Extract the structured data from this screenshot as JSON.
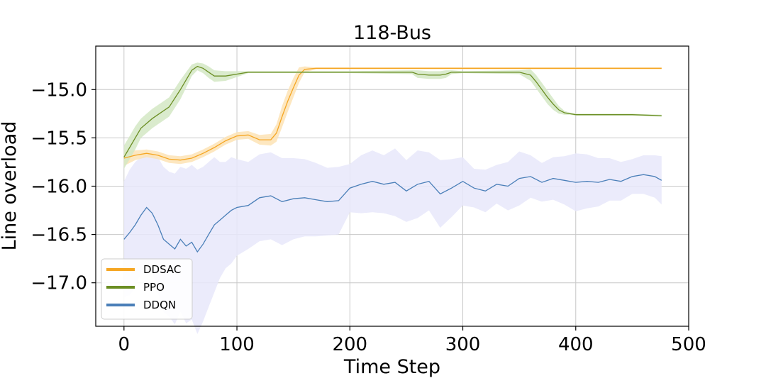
{
  "chart_data": {
    "type": "line",
    "title": "118-Bus",
    "xlabel": "Time Step",
    "ylabel": "Line overload",
    "xlim": [
      -25,
      500
    ],
    "ylim": [
      -17.45,
      -14.55
    ],
    "xticks": [
      0,
      100,
      200,
      300,
      400,
      500
    ],
    "xtick_labels": [
      "0",
      "100",
      "200",
      "300",
      "400",
      "500"
    ],
    "yticks": [
      -15.0,
      -15.5,
      -16.0,
      -16.5,
      -17.0
    ],
    "ytick_labels": [
      "−15.0",
      "−15.5",
      "−16.0",
      "−16.5",
      "−17.0"
    ],
    "grid": true,
    "legend_position": "lower-left",
    "series": [
      {
        "name": "DDSAC",
        "color": "#f5a623",
        "band_color": "#fde3b5",
        "x": [
          0,
          10,
          20,
          30,
          40,
          50,
          60,
          70,
          80,
          90,
          100,
          110,
          120,
          130,
          135,
          140,
          145,
          150,
          155,
          160,
          170,
          200,
          250,
          300,
          350,
          400,
          476
        ],
        "y": [
          -15.71,
          -15.68,
          -15.66,
          -15.68,
          -15.72,
          -15.73,
          -15.71,
          -15.66,
          -15.6,
          -15.53,
          -15.48,
          -15.47,
          -15.52,
          -15.52,
          -15.45,
          -15.28,
          -15.12,
          -14.98,
          -14.85,
          -14.79,
          -14.78,
          -14.78,
          -14.78,
          -14.78,
          -14.78,
          -14.78,
          -14.78
        ],
        "band": [
          0.08,
          0.05,
          0.04,
          0.04,
          0.04,
          0.04,
          0.04,
          0.04,
          0.04,
          0.04,
          0.04,
          0.04,
          0.05,
          0.06,
          0.09,
          0.11,
          0.11,
          0.1,
          0.08,
          0.03,
          0.01,
          0.01,
          0.01,
          0.01,
          0.01,
          0.01,
          0.01
        ]
      },
      {
        "name": "PPO",
        "color": "#6b8e23",
        "band_color": "#d4e8c4",
        "x": [
          0,
          5,
          10,
          15,
          20,
          25,
          30,
          40,
          50,
          55,
          60,
          65,
          70,
          75,
          80,
          90,
          100,
          110,
          200,
          255,
          260,
          270,
          280,
          285,
          290,
          300,
          350,
          360,
          365,
          370,
          375,
          380,
          385,
          390,
          395,
          400,
          450,
          476
        ],
        "y": [
          -15.7,
          -15.6,
          -15.5,
          -15.4,
          -15.35,
          -15.3,
          -15.26,
          -15.18,
          -15.0,
          -14.9,
          -14.8,
          -14.76,
          -14.78,
          -14.82,
          -14.86,
          -14.86,
          -14.84,
          -14.82,
          -14.82,
          -14.82,
          -14.84,
          -14.85,
          -14.85,
          -14.84,
          -14.82,
          -14.82,
          -14.82,
          -14.85,
          -14.92,
          -15.0,
          -15.08,
          -15.15,
          -15.21,
          -15.24,
          -15.25,
          -15.26,
          -15.26,
          -15.27
        ],
        "band": [
          0.12,
          0.12,
          0.12,
          0.1,
          0.1,
          0.1,
          0.1,
          0.1,
          0.1,
          0.08,
          0.06,
          0.04,
          0.05,
          0.06,
          0.06,
          0.05,
          0.03,
          0.01,
          0.01,
          0.02,
          0.04,
          0.04,
          0.04,
          0.04,
          0.02,
          0.01,
          0.02,
          0.06,
          0.07,
          0.07,
          0.07,
          0.06,
          0.04,
          0.02,
          0.01,
          0.01,
          0.01,
          0.01
        ]
      },
      {
        "name": "DDQN",
        "color": "#4a7fb8",
        "band_color": "#e7e8fa",
        "x": [
          0,
          5,
          10,
          15,
          20,
          25,
          30,
          35,
          40,
          45,
          50,
          55,
          60,
          65,
          70,
          75,
          80,
          85,
          90,
          95,
          100,
          110,
          120,
          130,
          140,
          150,
          160,
          170,
          180,
          190,
          200,
          210,
          220,
          230,
          240,
          250,
          260,
          270,
          280,
          290,
          300,
          310,
          320,
          330,
          340,
          350,
          360,
          370,
          380,
          390,
          400,
          410,
          420,
          430,
          440,
          450,
          460,
          470,
          476
        ],
        "y": [
          -16.55,
          -16.48,
          -16.4,
          -16.3,
          -16.22,
          -16.28,
          -16.4,
          -16.55,
          -16.6,
          -16.65,
          -16.55,
          -16.62,
          -16.58,
          -16.68,
          -16.6,
          -16.5,
          -16.4,
          -16.35,
          -16.3,
          -16.25,
          -16.22,
          -16.2,
          -16.12,
          -16.1,
          -16.16,
          -16.13,
          -16.12,
          -16.14,
          -16.16,
          -16.15,
          -16.02,
          -15.98,
          -15.95,
          -15.98,
          -15.96,
          -16.05,
          -15.98,
          -15.95,
          -16.08,
          -16.02,
          -15.95,
          -16.02,
          -16.05,
          -15.98,
          -16.0,
          -15.92,
          -15.9,
          -15.96,
          -15.92,
          -15.94,
          -15.96,
          -15.95,
          -15.96,
          -15.93,
          -15.95,
          -15.9,
          -15.88,
          -15.9,
          -15.94
        ],
        "band": [
          0.6,
          0.65,
          0.65,
          0.6,
          0.55,
          0.6,
          0.7,
          0.75,
          0.75,
          0.78,
          0.75,
          0.8,
          0.8,
          0.85,
          0.8,
          0.75,
          0.7,
          0.6,
          0.55,
          0.55,
          0.5,
          0.45,
          0.45,
          0.45,
          0.45,
          0.42,
          0.4,
          0.38,
          0.35,
          0.35,
          0.25,
          0.3,
          0.32,
          0.3,
          0.35,
          0.32,
          0.35,
          0.3,
          0.35,
          0.3,
          0.25,
          0.2,
          0.22,
          0.2,
          0.25,
          0.28,
          0.22,
          0.2,
          0.22,
          0.25,
          0.3,
          0.28,
          0.25,
          0.22,
          0.2,
          0.18,
          0.2,
          0.22,
          0.25
        ]
      }
    ]
  }
}
